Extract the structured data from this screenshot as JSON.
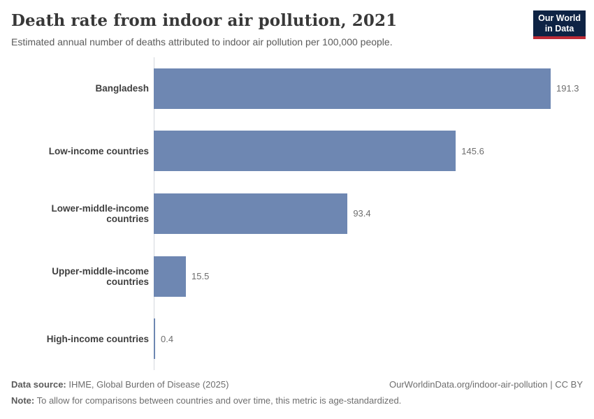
{
  "header": {
    "logo": {
      "line1": "Our World",
      "line2": "in Data"
    }
  },
  "chart_data": {
    "type": "bar",
    "orientation": "horizontal",
    "title": "Death rate from indoor air pollution, 2021",
    "subtitle": "Estimated annual number of deaths attributed to indoor air pollution per 100,000 people.",
    "categories": [
      "Bangladesh",
      "Low-income countries",
      "Lower-middle-income countries",
      "Upper-middle-income countries",
      "High-income countries"
    ],
    "values": [
      191.3,
      145.6,
      93.4,
      15.5,
      0.4
    ],
    "value_labels": [
      "191.3",
      "145.6",
      "93.4",
      "15.5",
      "0.4"
    ],
    "xlim": [
      0,
      191.3
    ],
    "grid": false,
    "legend": "none",
    "bar_color": "#6e87b2"
  },
  "colors": {
    "bar": "#6e87b2",
    "axis_line": "#d4d7dd",
    "logo_navy": "#0e2344",
    "logo_red": "#be2b36"
  },
  "footer": {
    "source_label": "Data source:",
    "source_text": " IHME, Global Burden of Disease (2025)",
    "url_text": "OurWorldinData.org/indoor-air-pollution | CC BY",
    "note_label": "Note:",
    "note_text": " To allow for comparisons between countries and over time, this metric is age-standardized."
  }
}
